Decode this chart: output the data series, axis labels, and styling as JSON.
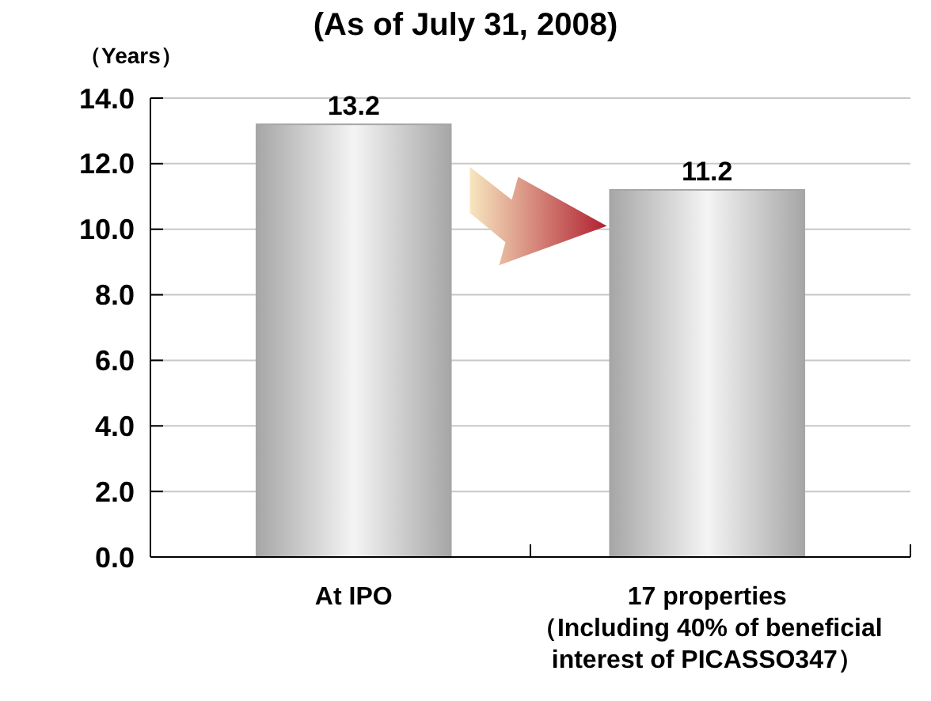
{
  "chart_data": {
    "type": "bar",
    "title": "(As of July 31, 2008)",
    "ylabel": "（Years）",
    "categories": [
      "At IPO",
      "17 properties\n（Including 40% of beneficial\ninterest of PICASSO347）"
    ],
    "values": [
      13.2,
      11.2
    ],
    "color": "#a6a6a6",
    "ylim": [
      0,
      14
    ],
    "yticks": [
      {
        "value": 0,
        "label": "0.0"
      },
      {
        "value": 2,
        "label": "2.0"
      },
      {
        "value": 4,
        "label": "4.0"
      },
      {
        "value": 6,
        "label": "6.0"
      },
      {
        "value": 8,
        "label": "8.0"
      },
      {
        "value": 10,
        "label": "10.0"
      },
      {
        "value": 12,
        "label": "12.0"
      },
      {
        "value": 14,
        "label": "14.0"
      }
    ],
    "grid": "y",
    "data_labels": true
  }
}
